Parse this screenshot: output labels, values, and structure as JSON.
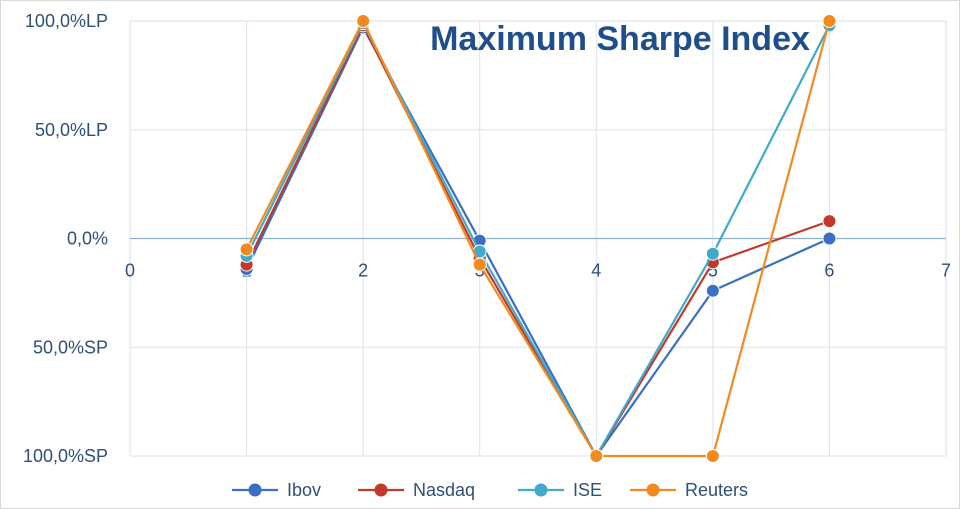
{
  "chart_data": {
    "type": "line",
    "title": "Maximum Sharpe Index",
    "xlabel": "",
    "ylabel": "",
    "xlim": [
      0,
      7
    ],
    "ylim": [
      -1,
      1
    ],
    "x_ticks": [
      "0",
      "1",
      "2",
      "3",
      "4",
      "5",
      "6",
      "7"
    ],
    "y_ticks": [
      {
        "value": 1,
        "label": "100,0%LP"
      },
      {
        "value": 0.5,
        "label": "50,0%LP"
      },
      {
        "value": 0,
        "label": "0,0%"
      },
      {
        "value": -0.5,
        "label": "50,0%SP"
      },
      {
        "value": -1,
        "label": "100,0%SP"
      }
    ],
    "grid": true,
    "legend_position": "bottom",
    "series": [
      {
        "name": "Ibov",
        "color": "#3a6fc4",
        "points": [
          [
            1,
            -0.14
          ],
          [
            2,
            0.97
          ],
          [
            3,
            -0.01
          ],
          [
            4,
            -1.0
          ],
          [
            5,
            -0.24
          ],
          [
            6,
            0.0
          ]
        ]
      },
      {
        "name": "Nasdaq",
        "color": "#c0392b",
        "points": [
          [
            1,
            -0.12
          ],
          [
            2,
            0.98
          ],
          [
            3,
            -0.09
          ],
          [
            4,
            -1.0
          ],
          [
            5,
            -0.11
          ],
          [
            6,
            0.08
          ]
        ]
      },
      {
        "name": "ISE",
        "color": "#41a9c9",
        "points": [
          [
            1,
            -0.08
          ],
          [
            2,
            0.99
          ],
          [
            3,
            -0.06
          ],
          [
            4,
            -1.0
          ],
          [
            5,
            -0.07
          ],
          [
            6,
            0.98
          ]
        ]
      },
      {
        "name": "Reuters",
        "color": "#f18a1f",
        "points": [
          [
            1,
            -0.05
          ],
          [
            2,
            1.0
          ],
          [
            3,
            -0.12
          ],
          [
            4,
            -1.0
          ],
          [
            5,
            -1.0
          ],
          [
            6,
            1.0
          ]
        ]
      }
    ]
  }
}
